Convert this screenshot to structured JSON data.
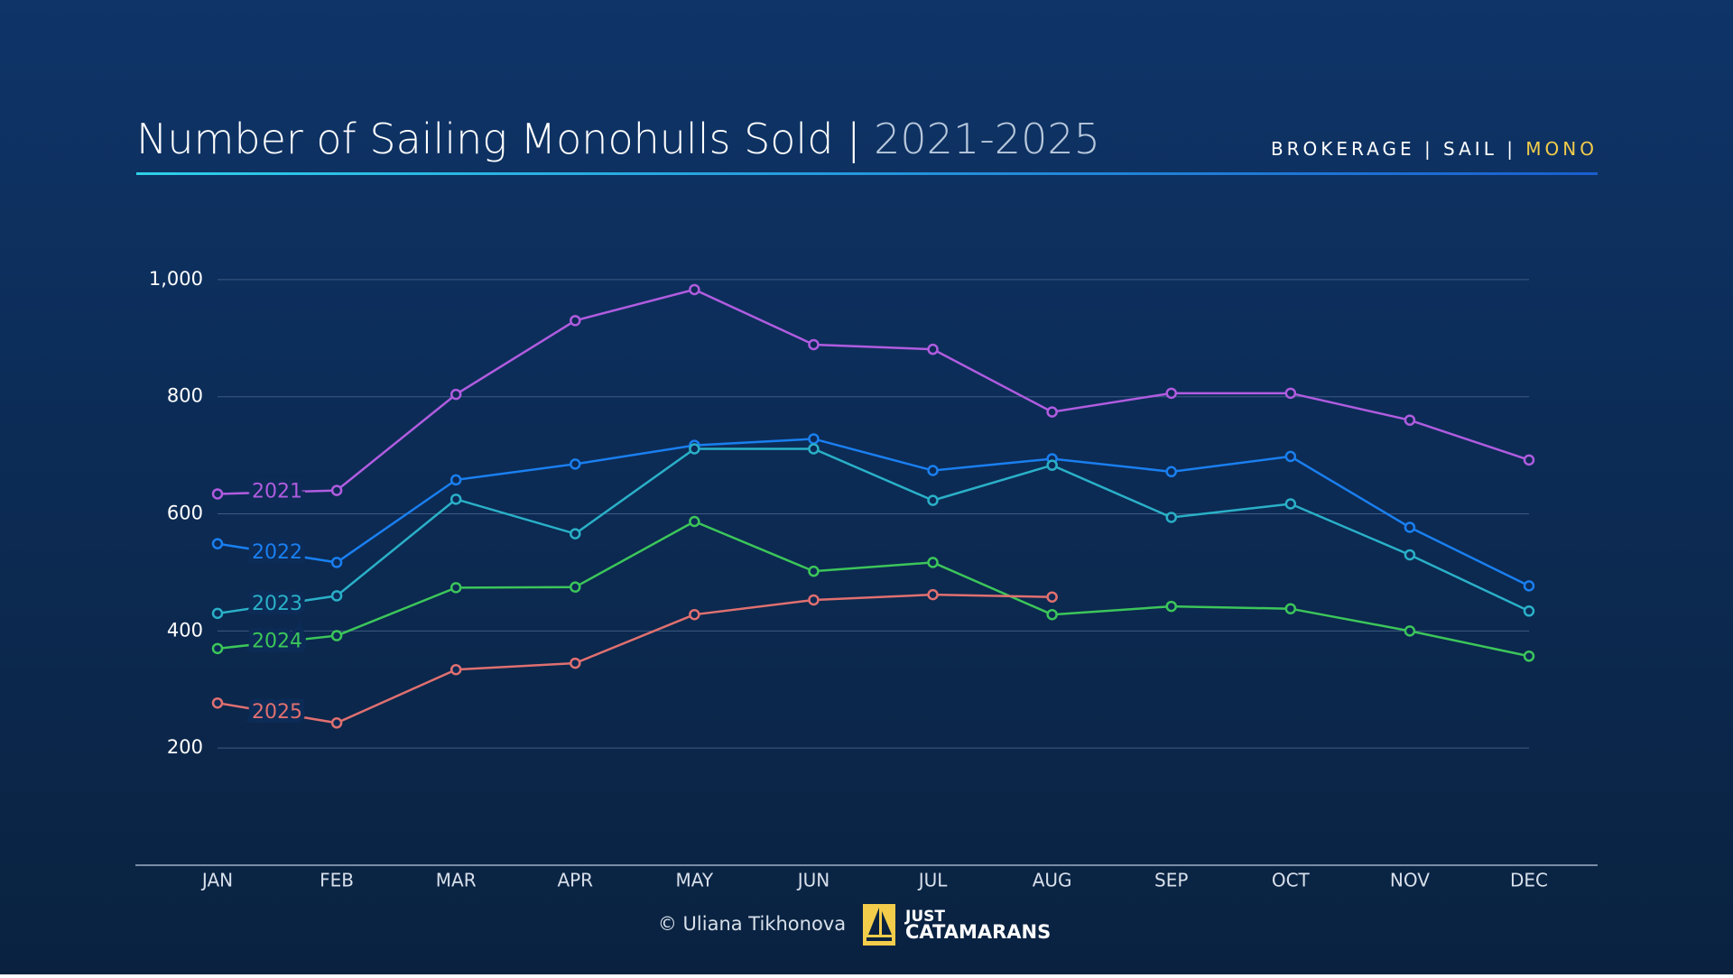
{
  "chart_data": {
    "type": "line",
    "title": "Number of Sailing Monohulls Sold |",
    "title_years": "2021-2025",
    "breadcrumb": "BROKERAGE | SAIL |",
    "breadcrumb_active": "MONO",
    "credit": "© Uliana Tikhonova",
    "logo": [
      "JUST",
      "CATAMARANS"
    ],
    "categories": [
      "JAN",
      "FEB",
      "MAR",
      "APR",
      "MAY",
      "JUN",
      "JUL",
      "AUG",
      "SEP",
      "OCT",
      "NOV",
      "DEC"
    ],
    "series": [
      {
        "name": "2021",
        "color": "#b05ce0",
        "values": [
          634,
          640,
          804,
          930,
          983,
          889,
          881,
          774,
          806,
          806,
          760,
          692
        ]
      },
      {
        "name": "2022",
        "color": "#1a7ff0",
        "values": [
          549,
          517,
          658,
          685,
          717,
          728,
          674,
          694,
          672,
          698,
          577,
          477
        ]
      },
      {
        "name": "2023",
        "color": "#2ab0c8",
        "values": [
          430,
          460,
          625,
          566,
          711,
          711,
          623,
          683,
          594,
          617,
          530,
          434
        ]
      },
      {
        "name": "2024",
        "color": "#3cc65a",
        "values": [
          370,
          392,
          474,
          475,
          587,
          502,
          517,
          428,
          442,
          438,
          400,
          357
        ]
      },
      {
        "name": "2025",
        "color": "#e07070",
        "values": [
          277,
          243,
          334,
          345,
          428,
          453,
          462,
          458,
          null,
          null,
          null,
          null
        ]
      }
    ],
    "ylim": [
      0,
      1100
    ],
    "yticks": [
      200,
      400,
      600,
      800,
      {
        "value": 1000,
        "label": "1,000"
      }
    ],
    "grid": true
  }
}
